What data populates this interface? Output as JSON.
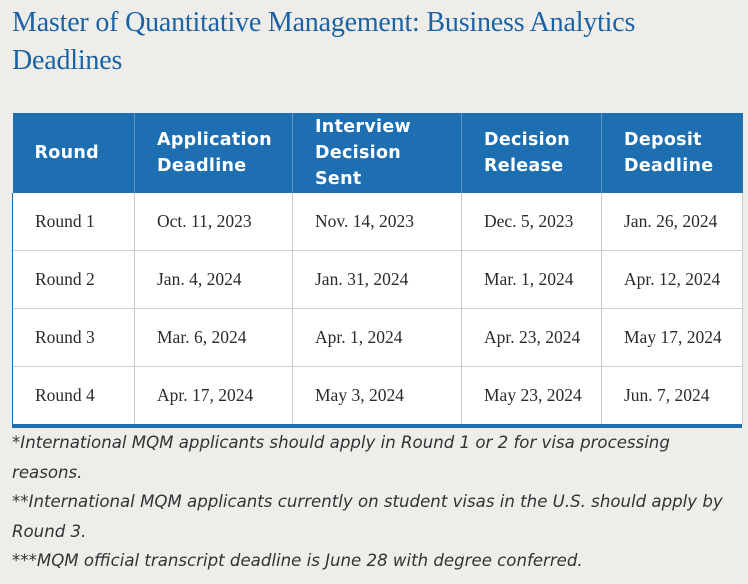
{
  "page_title": "Master of Quantitative Management: Business Analytics Deadlines",
  "table": {
    "headers": [
      "Round",
      "Application Deadline",
      "Interview Decision Sent",
      "Decision Release",
      "Deposit Deadline"
    ],
    "rows": [
      [
        "Round 1",
        "Oct. 11, 2023",
        "Nov. 14, 2023",
        "Dec. 5, 2023",
        "Jan. 26, 2024"
      ],
      [
        "Round 2",
        "Jan. 4, 2024",
        "Jan. 31, 2024",
        "Mar. 1, 2024",
        "Apr. 12, 2024"
      ],
      [
        "Round 3",
        "Mar. 6, 2024",
        "Apr. 1, 2024",
        "Apr. 23, 2024",
        "May 17, 2024"
      ],
      [
        "Round 4",
        "Apr. 17, 2024",
        "May 3, 2024",
        "May 23, 2024",
        "Jun. 7, 2024"
      ]
    ]
  },
  "footnotes": [
    "*International MQM applicants should apply in Round 1 or 2 for visa processing reasons.",
    "**International MQM applicants currently on student visas in the U.S. should apply by Round 3.",
    "***MQM official transcript deadline is June 28 with degree conferred."
  ],
  "colors": {
    "accent": "#1d6fb1",
    "title": "#1a63a5",
    "background": "#efedea"
  }
}
